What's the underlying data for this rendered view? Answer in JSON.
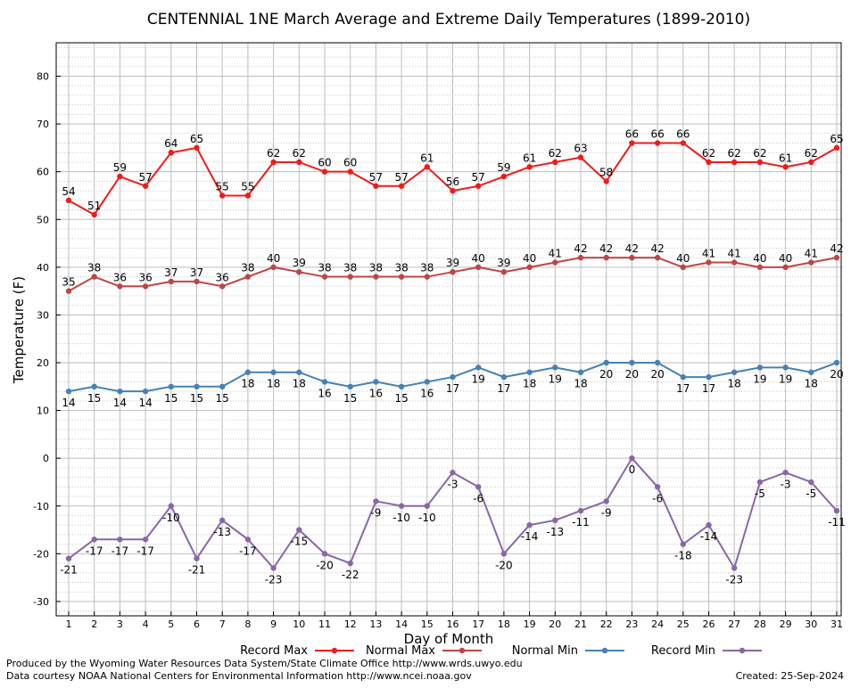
{
  "chart_data": {
    "type": "line",
    "title": "CENTENNIAL 1NE March Average and Extreme Daily Temperatures (1899-2010)",
    "xlabel": "Day of Month",
    "ylabel": "Temperature (F)",
    "ylim": [
      -33,
      87
    ],
    "yticks": [
      -30,
      -20,
      -10,
      0,
      10,
      20,
      30,
      40,
      50,
      60,
      70,
      80
    ],
    "x": [
      1,
      2,
      3,
      4,
      5,
      6,
      7,
      8,
      9,
      10,
      11,
      12,
      13,
      14,
      15,
      16,
      17,
      18,
      19,
      20,
      21,
      22,
      23,
      24,
      25,
      26,
      27,
      28,
      29,
      30,
      31
    ],
    "grid": true,
    "legend_position": "bottom",
    "series": [
      {
        "name": "Record Max",
        "color": "#ee1c1c",
        "label_position": "above",
        "values": [
          54,
          51,
          59,
          57,
          64,
          65,
          55,
          55,
          62,
          62,
          60,
          60,
          57,
          57,
          61,
          56,
          57,
          59,
          61,
          62,
          63,
          58,
          66,
          66,
          66,
          62,
          62,
          62,
          61,
          62,
          65
        ]
      },
      {
        "name": "Normal Max",
        "color": "#bf4545",
        "label_position": "above",
        "values": [
          35,
          38,
          36,
          36,
          37,
          37,
          36,
          38,
          40,
          39,
          38,
          38,
          38,
          38,
          38,
          39,
          40,
          39,
          40,
          41,
          42,
          42,
          42,
          42,
          40,
          41,
          41,
          40,
          40,
          41,
          42
        ]
      },
      {
        "name": "Normal Min",
        "color": "#4682b4",
        "label_position": "below",
        "values": [
          14,
          15,
          14,
          14,
          15,
          15,
          15,
          18,
          18,
          18,
          16,
          15,
          16,
          15,
          16,
          17,
          19,
          17,
          18,
          19,
          18,
          20,
          20,
          20,
          17,
          17,
          18,
          19,
          19,
          18,
          20
        ]
      },
      {
        "name": "Record Min",
        "color": "#8a67a8",
        "label_position": "below",
        "values": [
          -21,
          -17,
          -17,
          -17,
          -10,
          -21,
          -13,
          -17,
          -23,
          -15,
          -20,
          -22,
          -9,
          -10,
          -10,
          -3,
          -6,
          -20,
          -14,
          -13,
          -11,
          -9,
          0,
          -6,
          -18,
          -14,
          -23,
          -5,
          -3,
          -5,
          -11
        ]
      }
    ]
  },
  "footer": {
    "produced_by": "Produced by the Wyoming Water Resources Data System/State Climate Office http://www.wrds.uwyo.edu",
    "courtesy": "Data courtesy NOAA National Centers for Environmental Information http://www.ncei.noaa.gov",
    "created": "Created:  25-Sep-2024"
  }
}
